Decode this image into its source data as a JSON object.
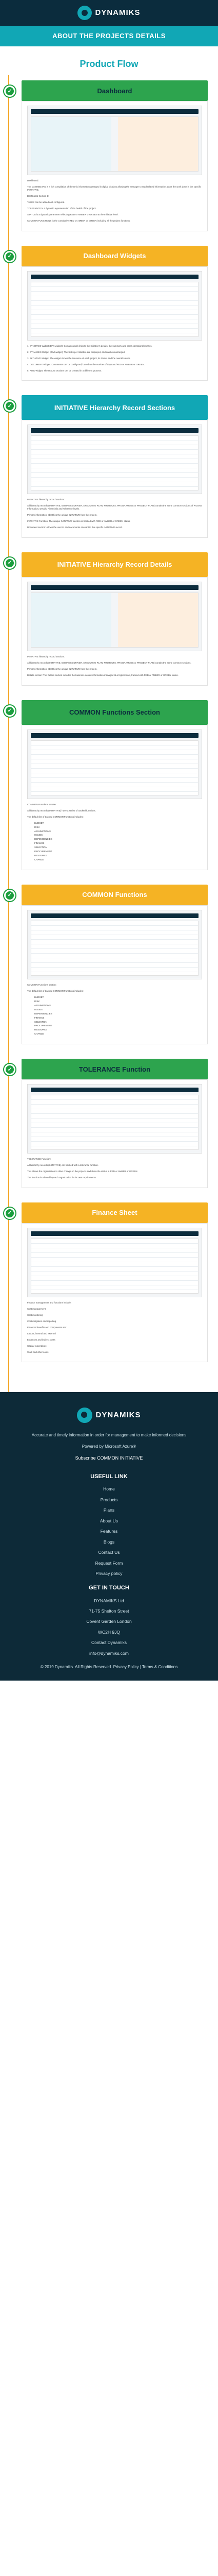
{
  "header": {
    "brand": "DYNAMIKS",
    "banner_title": "ABOUT THE PROJECTS DETAILS"
  },
  "page_title": "Product Flow",
  "steps": [
    {
      "title": "Dashboard",
      "paras": [
        "Dashboard:",
        "The DASHBOARD is a rich compilation of dynamic information arranged in digital displays allowing the manager to read related information about the work done in the specific INITIATIVE.",
        "Dashboard Section 1:",
        "TASKS can be added and configured.",
        "TOLERANCE is a dynamic representation of the health of the project.",
        "STATUS is a dynamic parameter reflecting RED or AMBER or GREEN at the Initiative level.",
        "COMMON FUNCTIONS is the cumulative RED or AMBER or GREEN including all the project functions."
      ]
    },
    {
      "title": "Dashboard Widgets",
      "paras": [
        "1. SYNOPSIS Widget (DIVI widget): Contains quick links to the Initiative's details, the summary and other operational metrics.",
        "2. DYNAMIKS Widget (DIVI widget): The tasks per Initiative are displayed, and can be rearranged.",
        "3. INITIATIVE Widget: The widget shows the tolerance of each project, its Status and the overall Health.",
        "4. DOCUMENT Widget: Documents can be configured, based on the number of days and RED or AMBER or GREEN.",
        "5. RISK Widget: The ISSUE sections can be created in a different process."
      ]
    },
    {
      "title": "INITIATIVE Hierarchy Record Sections",
      "tall": true,
      "paras": [
        "INITIATIVE hierarchy record sections:",
        "All hierarchy records (INITIATIVE, BUSINESS DRIVER, EXECUTIVE PLAN, PROJECTS, PROGRAMMES or PROJECT PLAN) contain the same common sections of Process Information, Details, Financials and Tolerance levels.",
        "Primary information: Identifies the unique INITIATIVE from the system.",
        "INITIATIVE Function: The unique INITIATIVE function is tracked with RED or AMBER or GREEN status.",
        "Document section: Allows the user to add documents relevant to the specific INITIATIVE record."
      ]
    },
    {
      "title": "INITIATIVE Hierarchy Record Details",
      "tall": true,
      "paras": [
        "INITIATIVE hierarchy record sections:",
        "All hierarchy records (INITIATIVE, BUSINESS DRIVER, EXECUTIVE PLAN, PROJECTS, PROGRAMMES or PROJECT PLAN) contain the same common sections.",
        "Primary information: Identifies the unique INITIATIVE from the system.",
        "Details section: The Details section includes the business-centric information managed at a higher level, tracked with RED or AMBER or GREEN status."
      ]
    },
    {
      "title": "COMMON Functions Section",
      "tall": true,
      "paras": [
        "COMMON Functions section:",
        "All hierarchy records (INITIATIVE) have a series of tracked functions.",
        "The default list of tracked COMMON Functions includes:"
      ],
      "list": [
        "BUDGET",
        "RISK",
        "ASSUMPTIONS",
        "ISSUES",
        "DEPENDENCIES",
        "FINANCE",
        "SELECTION",
        "PROCUREMENT",
        "RESOURCE",
        "CHANGE"
      ]
    },
    {
      "title": "COMMON Functions",
      "paras": [
        "COMMON Functions section:",
        "The default list of tracked COMMON Functions includes:"
      ],
      "list": [
        "BUDGET",
        "RISK",
        "ASSUMPTIONS",
        "ISSUES",
        "DEPENDENCIES",
        "FINANCE",
        "SELECTION",
        "PROCUREMENT",
        "RESOURCE",
        "CHANGE"
      ]
    },
    {
      "title": "TOLERANCE Function",
      "paras": [
        "TOLERANCE Function:",
        "All hierarchy records (INITIATIVE) are tracked with a tolerance function.",
        "This allows the organization to drive change on the projects and show the status in RED or AMBER or GREEN.",
        "The function is tailored by each organization for its own requirements."
      ]
    },
    {
      "title": "Finance Sheet",
      "paras": [
        "Finance management and functions include:",
        "Cost management",
        "Cost monitoring",
        "Cost mitigation and reporting",
        "Financial benefits and components are:",
        "Labour, internal and external",
        "Expenses and indirect costs",
        "Capital expenditure",
        "Work and other costs"
      ]
    }
  ],
  "footer": {
    "brand": "DYNAMIKS",
    "desc": "Accurate and timely information in order for management to make informed decisions",
    "powered": "Powered by Microsoft Azure®",
    "subscribe": "Subscribe COMMON INITIATIVE",
    "links_title": "USEFUL LINK",
    "links": [
      "Home",
      "Products",
      "Plans",
      "About Us",
      "Features",
      "Blogs",
      "Contact Us",
      "Request Form",
      "Privacy policy"
    ],
    "contact_title": "GET IN TOUCH",
    "contact": [
      "DYNAMIKS Ltd",
      "71-75 Shelton Street",
      "Covent Garden London",
      "WC2H 9JQ",
      "Contact Dynamiks",
      "info@dynamiks.com"
    ],
    "copyright": "© 2019 Dynamiks. All Rights Reserved. Privacy Policy | Terms & Conditions"
  }
}
